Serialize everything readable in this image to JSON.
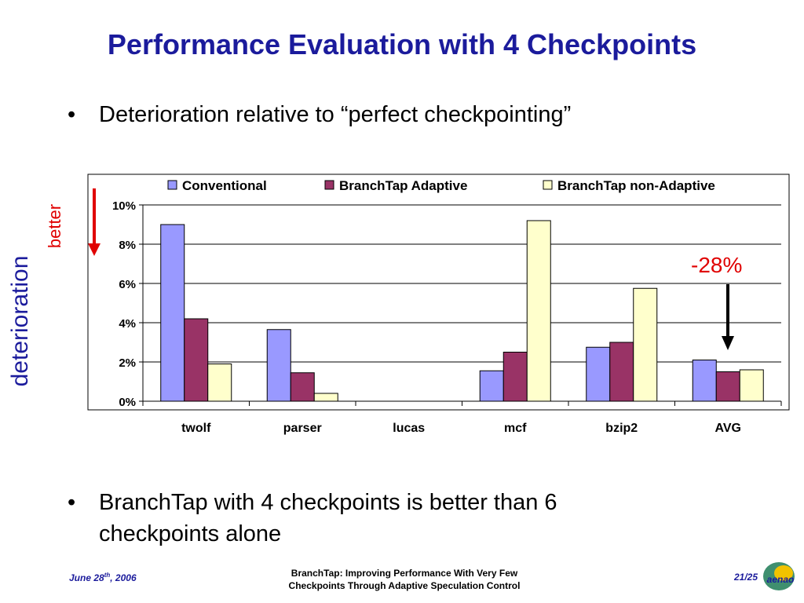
{
  "title": "Performance Evaluation with 4 Checkpoints",
  "bullets": [
    "Deterioration relative to “perfect checkpointing”",
    "BranchTap with 4 checkpoints is better than 6 checkpoints alone"
  ],
  "bullet_glyph": "•",
  "side_labels": {
    "axis": "deterioration",
    "direction": "better"
  },
  "annotation": "-28%",
  "colors": {
    "title": "#1b1b9c",
    "accent_red": "#e00000",
    "conventional": "#9999ff",
    "adaptive": "#993366",
    "non_adaptive": "#ffffcc"
  },
  "chart_data": {
    "type": "bar",
    "categories": [
      "twolf",
      "parser",
      "lucas",
      "mcf",
      "bzip2",
      "AVG"
    ],
    "series": [
      {
        "name": "Conventional",
        "values": [
          9.0,
          3.65,
          0.0,
          1.55,
          2.75,
          2.1
        ]
      },
      {
        "name": "BranchTap Adaptive",
        "values": [
          4.2,
          1.45,
          0.0,
          2.5,
          3.0,
          1.5
        ]
      },
      {
        "name": "BranchTap non-Adaptive",
        "values": [
          1.9,
          0.4,
          0.0,
          9.2,
          5.75,
          1.6
        ]
      }
    ],
    "yticks": [
      "0%",
      "2%",
      "4%",
      "6%",
      "8%",
      "10%"
    ],
    "ylim": [
      0,
      10
    ],
    "grid": true,
    "legend": "top"
  },
  "footer": {
    "date_main": "June 28",
    "date_sup": "th",
    "date_tail": ", 2006",
    "center_line1": "BranchTap: Improving Performance With Very Few",
    "center_line2": "Checkpoints Through Adaptive Speculation Control",
    "page": "21/25",
    "logo_text": "aenao"
  }
}
